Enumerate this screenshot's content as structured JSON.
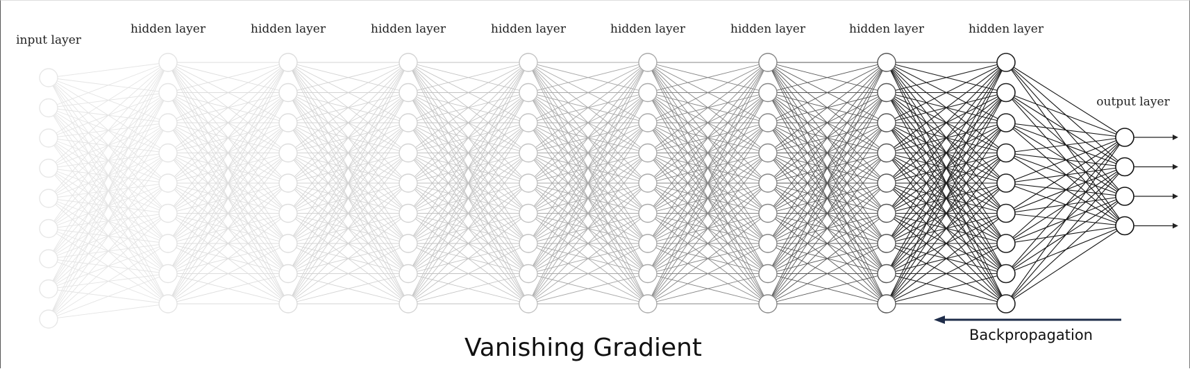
{
  "layers": [
    {
      "label": "input layer",
      "nodes": 9,
      "shade": "#e7e7e7"
    },
    {
      "label": "hidden layer",
      "nodes": 9,
      "shade": "#e4e4e4"
    },
    {
      "label": "hidden layer",
      "nodes": 9,
      "shade": "#dddddd"
    },
    {
      "label": "hidden layer",
      "nodes": 9,
      "shade": "#d3d3d3"
    },
    {
      "label": "hidden layer",
      "nodes": 9,
      "shade": "#c2c2c2"
    },
    {
      "label": "hidden layer",
      "nodes": 9,
      "shade": "#a9a9a9"
    },
    {
      "label": "hidden layer",
      "nodes": 9,
      "shade": "#858585"
    },
    {
      "label": "hidden layer",
      "nodes": 9,
      "shade": "#555555"
    },
    {
      "label": "hidden layer",
      "nodes": 9,
      "shade": "#1e1e1e"
    },
    {
      "label": "output layer",
      "nodes": 4,
      "shade": "#111111"
    }
  ],
  "title": "Vanishing Gradient",
  "backprop_label": "Backpropagation",
  "colors": {
    "arrow": "#1f2d4a",
    "text": "#111111"
  }
}
